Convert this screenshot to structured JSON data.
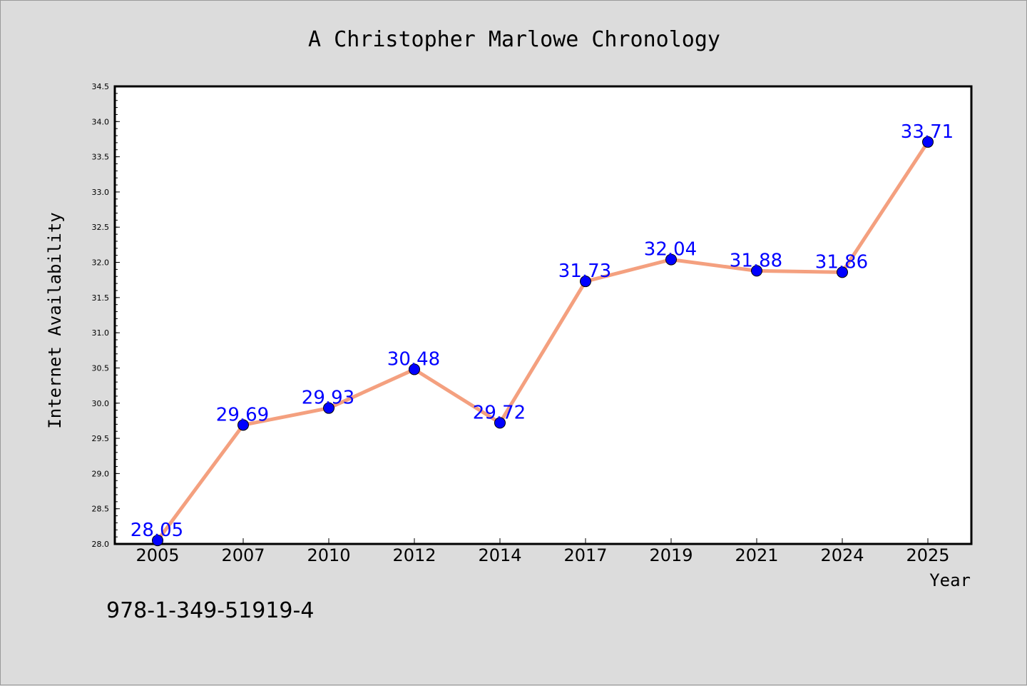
{
  "chart_data": {
    "type": "line",
    "title": "A Christopher Marlowe Chronology",
    "xlabel": "Year",
    "ylabel": "Internet Availability",
    "categories": [
      "2005",
      "2007",
      "2010",
      "2012",
      "2014",
      "2017",
      "2019",
      "2021",
      "2024",
      "2025"
    ],
    "series": [
      {
        "values": [
          28.05,
          29.69,
          29.93,
          30.48,
          29.72,
          31.73,
          32.04,
          31.88,
          31.86,
          33.71
        ],
        "line_color": "#f4a07f",
        "marker_color": "#0000ff"
      }
    ],
    "data_labels": [
      "28.05",
      "29.69",
      "29.93",
      "30.48",
      "29.72",
      "31.73",
      "32.04",
      "31.88",
      "31.86",
      "33.71"
    ],
    "ylim": [
      28.0,
      34.5
    ],
    "yticks": [
      "28.0",
      "28.5",
      "29.0",
      "29.5",
      "30.0",
      "30.5",
      "31.0",
      "31.5",
      "32.0",
      "32.5",
      "33.0",
      "33.5",
      "34.0",
      "34.5"
    ],
    "grid": false,
    "legend": "none"
  },
  "annotation": {
    "isbn": "978-1-349-51919-4"
  }
}
